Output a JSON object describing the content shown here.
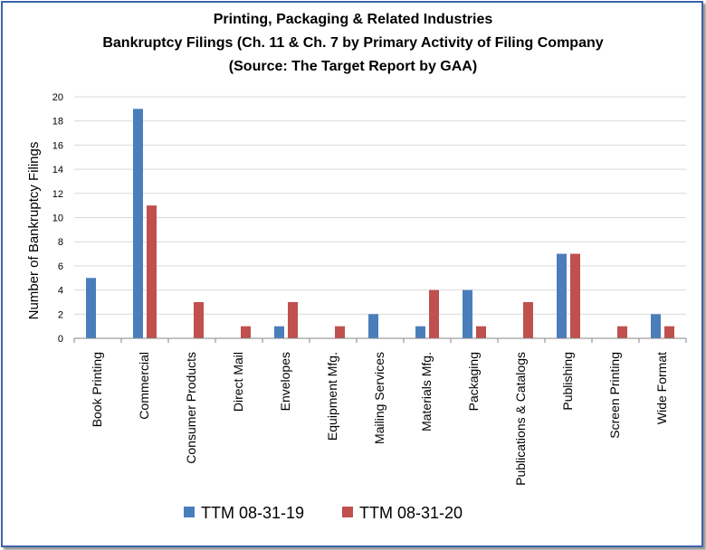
{
  "chart_data": {
    "type": "bar",
    "title": [
      "Printing, Packaging & Related Industries",
      "Bankruptcy Filings (Ch. 11 & Ch. 7 by Primary Activity of Filing Company",
      "(Source: The Target Report by GAA)"
    ],
    "xlabel": "",
    "ylabel": "Number of Bankruptcy Filings",
    "ylim": [
      0,
      20
    ],
    "yticks": [
      0,
      2,
      4,
      6,
      8,
      10,
      12,
      14,
      16,
      18,
      20
    ],
    "categories": [
      "Book Printing",
      "Commercial",
      "Consumer Products",
      "Direct Mail",
      "Envelopes",
      "Equipment Mfg.",
      "Mailing Services",
      "Materials Mfg.",
      "Packaging",
      "Publications & Catalogs",
      "Publishing",
      "Screen Printing",
      "Wide Format"
    ],
    "series": [
      {
        "name": "TTM 08-31-19",
        "color": "#4a7ebb",
        "values": [
          5,
          19,
          0,
          0,
          1,
          0,
          2,
          1,
          4,
          0,
          7,
          0,
          2
        ]
      },
      {
        "name": "TTM 08-31-20",
        "color": "#c0504d",
        "values": [
          0,
          11,
          3,
          1,
          3,
          1,
          0,
          4,
          1,
          3,
          7,
          1,
          1
        ]
      }
    ],
    "grid": true,
    "legend": "bottom"
  }
}
